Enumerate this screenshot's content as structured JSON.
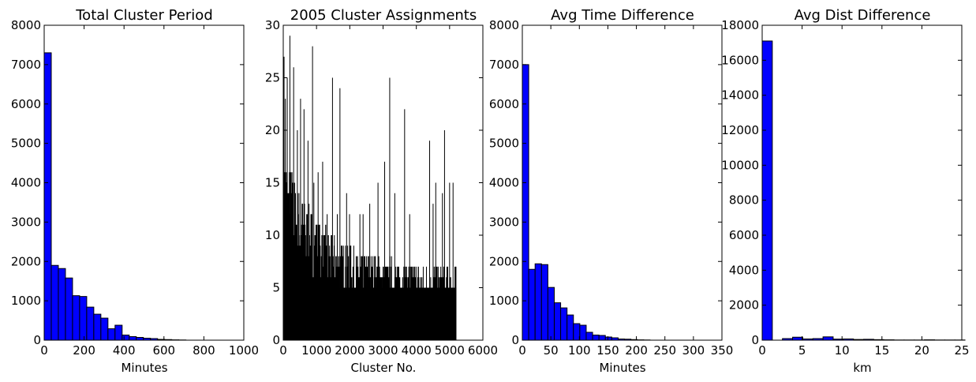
{
  "chart_data": [
    {
      "type": "bar",
      "title": "Total Cluster Period",
      "xlabel": "Minutes",
      "ylabel": "",
      "xlim": [
        0,
        1000
      ],
      "ylim": [
        0,
        8000
      ],
      "xticks": [
        0,
        200,
        400,
        600,
        800,
        1000
      ],
      "yticks": [
        0,
        1000,
        2000,
        3000,
        4000,
        5000,
        6000,
        7000,
        8000
      ],
      "bin_width": 35.5,
      "values": [
        7300,
        1900,
        1820,
        1580,
        1130,
        1110,
        840,
        660,
        560,
        290,
        380,
        130,
        90,
        70,
        50,
        40,
        20,
        15,
        8,
        5
      ],
      "color": "#0000ff"
    },
    {
      "type": "bar",
      "title": "2005 Cluster Assignments",
      "xlabel": "Cluster No.",
      "ylabel": "",
      "xlim": [
        0,
        6000
      ],
      "ylim": [
        0,
        30
      ],
      "xticks": [
        0,
        1000,
        2000,
        3000,
        4000,
        5000,
        6000
      ],
      "yticks": [
        0,
        5,
        10,
        15,
        20,
        25,
        30
      ],
      "n_clusters": 5200,
      "peaks": [
        {
          "x": 20,
          "y": 27
        },
        {
          "x": 60,
          "y": 23
        },
        {
          "x": 120,
          "y": 25
        },
        {
          "x": 200,
          "y": 29
        },
        {
          "x": 310,
          "y": 26
        },
        {
          "x": 420,
          "y": 20
        },
        {
          "x": 520,
          "y": 23
        },
        {
          "x": 620,
          "y": 22
        },
        {
          "x": 740,
          "y": 19
        },
        {
          "x": 920,
          "y": 15
        },
        {
          "x": 1050,
          "y": 16
        },
        {
          "x": 1180,
          "y": 17
        },
        {
          "x": 1320,
          "y": 12
        },
        {
          "x": 1480,
          "y": 17
        },
        {
          "x": 1620,
          "y": 12
        },
        {
          "x": 1700,
          "y": 15
        },
        {
          "x": 1900,
          "y": 14
        },
        {
          "x": 1990,
          "y": 12
        },
        {
          "x": 2300,
          "y": 12
        },
        {
          "x": 2400,
          "y": 12
        },
        {
          "x": 2600,
          "y": 13
        },
        {
          "x": 2850,
          "y": 15
        },
        {
          "x": 3050,
          "y": 17
        },
        {
          "x": 3350,
          "y": 14
        },
        {
          "x": 3650,
          "y": 22
        },
        {
          "x": 3800,
          "y": 12
        },
        {
          "x": 4400,
          "y": 19
        },
        {
          "x": 4500,
          "y": 13
        },
        {
          "x": 4580,
          "y": 15
        },
        {
          "x": 4780,
          "y": 14
        },
        {
          "x": 4850,
          "y": 17
        },
        {
          "x": 5000,
          "y": 15
        },
        {
          "x": 5100,
          "y": 15
        }
      ],
      "other_peaks": [
        {
          "x": 880,
          "y": 28
        },
        {
          "x": 1480,
          "y": 25
        },
        {
          "x": 1700,
          "y": 24
        },
        {
          "x": 3200,
          "y": 25
        },
        {
          "x": 4850,
          "y": 20
        }
      ],
      "color": "#000000"
    },
    {
      "type": "bar",
      "title": "Avg Time Difference",
      "xlabel": "Minutes",
      "ylabel": "",
      "xlim": [
        0,
        350
      ],
      "ylim": [
        0,
        8000
      ],
      "xticks": [
        0,
        50,
        100,
        150,
        200,
        250,
        300,
        350
      ],
      "yticks": [
        0,
        1000,
        2000,
        3000,
        4000,
        5000,
        6000,
        7000,
        8000
      ],
      "bin_width": 11.2,
      "values": [
        7000,
        1800,
        1940,
        1920,
        1340,
        950,
        820,
        640,
        420,
        380,
        200,
        130,
        120,
        80,
        60,
        30,
        25,
        15,
        8,
        5
      ],
      "color": "#0000ff"
    },
    {
      "type": "bar",
      "title": "Avg Dist Difference",
      "xlabel": "km",
      "ylabel": "",
      "xlim": [
        0,
        25
      ],
      "ylim": [
        0,
        18000
      ],
      "xticks": [
        0,
        5,
        10,
        15,
        20,
        25
      ],
      "yticks": [
        0,
        2000,
        4000,
        6000,
        8000,
        10000,
        12000,
        14000,
        16000,
        18000
      ],
      "bin_width": 1.27,
      "values": [
        17100,
        0,
        90,
        170,
        70,
        90,
        190,
        60,
        70,
        40,
        50,
        30,
        20,
        10,
        10,
        10,
        20,
        10,
        10,
        10
      ],
      "color": "#0000ff"
    }
  ]
}
